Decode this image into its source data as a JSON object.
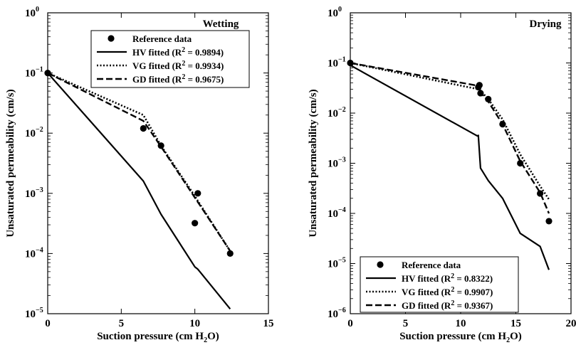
{
  "chart_data": [
    {
      "type": "line",
      "title": "Wetting",
      "xlabel": "Suction pressure (cm H",
      "xlabel_sub": "2",
      "xlabel_end": "O)",
      "ylabel": "Unsaturated permeability (cm/s)",
      "xlim": [
        0,
        15
      ],
      "ylim": [
        1e-05,
        1
      ],
      "yscale": "log",
      "x_ticks": [
        0,
        5,
        10,
        15
      ],
      "y_ticks": [
        -5,
        -4,
        -3,
        -2,
        -1,
        0
      ],
      "legend_position": "top-right",
      "series": [
        {
          "name": "Reference data",
          "style": "points",
          "x": [
            0,
            6.5,
            7.7,
            10.0,
            10.2,
            12.4
          ],
          "y": [
            0.1,
            0.012,
            0.0062,
            0.00032,
            0.001,
            0.0001
          ]
        },
        {
          "name": "HV fitted (R",
          "r2": "0.9894",
          "style": "solid",
          "x": [
            0,
            6.5,
            7.7,
            10.0,
            10.2,
            12.4
          ],
          "y": [
            0.1,
            0.0016,
            0.00045,
            6e-05,
            5.5e-05,
            1.2e-05
          ]
        },
        {
          "name": "VG fitted (R",
          "r2": "0.9934",
          "style": "dotted",
          "x": [
            0,
            6.5,
            7.7,
            10.0,
            10.2,
            12.4
          ],
          "y": [
            0.1,
            0.02,
            0.0062,
            0.0009,
            0.00075,
            0.00011
          ]
        },
        {
          "name": "GD fitted (R",
          "r2": "0.9675",
          "style": "dashed",
          "x": [
            0,
            6.5,
            7.7,
            10.0,
            10.2,
            12.4
          ],
          "y": [
            0.1,
            0.016,
            0.006,
            0.00085,
            0.00072,
            0.00011
          ]
        }
      ]
    },
    {
      "type": "line",
      "title": "Drying",
      "xlabel": "Suction pressure (cm H",
      "xlabel_sub": "2",
      "xlabel_end": "O)",
      "ylabel": "Unsaturated permeability (cm/s)",
      "xlim": [
        0,
        20
      ],
      "ylim": [
        1e-06,
        1
      ],
      "yscale": "log",
      "x_ticks": [
        0,
        5,
        10,
        15,
        20
      ],
      "y_ticks": [
        -6,
        -5,
        -4,
        -3,
        -2,
        -1,
        0
      ],
      "legend_position": "bottom-right",
      "series": [
        {
          "name": "Reference data",
          "style": "points",
          "x": [
            0,
            11.6,
            11.7,
            11.8,
            12.5,
            13.8,
            15.4,
            17.2,
            18.0
          ],
          "y": [
            0.1,
            0.033,
            0.036,
            0.025,
            0.019,
            0.006,
            0.001,
            0.00025,
            7e-05
          ]
        },
        {
          "name": "HV fitted (R",
          "r2": "0.8322",
          "style": "solid",
          "x": [
            0,
            11.5,
            11.6,
            11.8,
            12.5,
            13.8,
            15.4,
            17.2,
            18.0
          ],
          "y": [
            0.09,
            0.0035,
            0.0036,
            0.0008,
            0.00045,
            0.0002,
            4e-05,
            2.2e-05,
            7.5e-06
          ]
        },
        {
          "name": "VG fitted (R",
          "r2": "0.9907",
          "style": "dotted",
          "x": [
            0,
            11.6,
            11.7,
            11.8,
            12.5,
            13.8,
            15.4,
            17.2,
            18.0
          ],
          "y": [
            0.1,
            0.03,
            0.032,
            0.028,
            0.019,
            0.0075,
            0.0015,
            0.00035,
            0.00019
          ]
        },
        {
          "name": "GD fitted (R",
          "r2": "0.9367",
          "style": "dashed",
          "x": [
            0,
            11.6,
            11.7,
            11.8,
            12.5,
            13.8,
            15.4,
            17.2,
            18.0
          ],
          "y": [
            0.1,
            0.035,
            0.038,
            0.026,
            0.017,
            0.006,
            0.0011,
            0.00026,
            0.0001
          ]
        }
      ]
    }
  ]
}
